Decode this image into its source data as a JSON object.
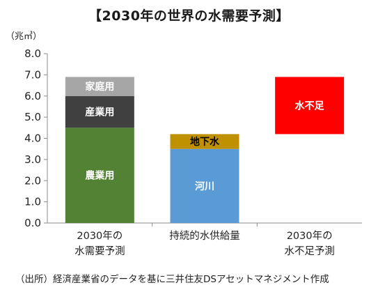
{
  "chart_data": {
    "type": "bar",
    "stacked": true,
    "title": "【2030年の世界の水需要予測】",
    "ylabel": "（兆㎥）",
    "ylim": [
      0,
      8
    ],
    "yticks": [
      "0.0",
      "1.0",
      "2.0",
      "3.0",
      "4.0",
      "5.0",
      "6.0",
      "7.0",
      "8.0"
    ],
    "grid": false,
    "bars": [
      {
        "category_lines": [
          "2030年の",
          "水需要予測"
        ],
        "segments": [
          {
            "name": "農業用",
            "start": 0.0,
            "end": 4.5,
            "color": "#548235",
            "label_color": "#ffffff"
          },
          {
            "name": "産業用",
            "start": 4.5,
            "end": 6.0,
            "color": "#404040",
            "label_color": "#ffffff"
          },
          {
            "name": "家庭用",
            "start": 6.0,
            "end": 6.9,
            "color": "#a6a6a6",
            "label_color": "#ffffff"
          }
        ]
      },
      {
        "category_lines": [
          "持続的水供給量"
        ],
        "segments": [
          {
            "name": "河川",
            "start": 0.0,
            "end": 3.5,
            "color": "#5b9bd5",
            "label_color": "#ffffff"
          },
          {
            "name": "地下水",
            "start": 3.5,
            "end": 4.2,
            "color": "#bf9000",
            "label_color": "#000000"
          }
        ]
      },
      {
        "category_lines": [
          "2030年の",
          "水不足予測"
        ],
        "segments": [
          {
            "name": "水不足",
            "start": 4.2,
            "end": 6.9,
            "color": "#ff0000",
            "label_color": "#ffffff"
          }
        ]
      }
    ]
  },
  "source": "（出所）経済産業省のデータを基に三井住友DSアセットマネジメント作成"
}
